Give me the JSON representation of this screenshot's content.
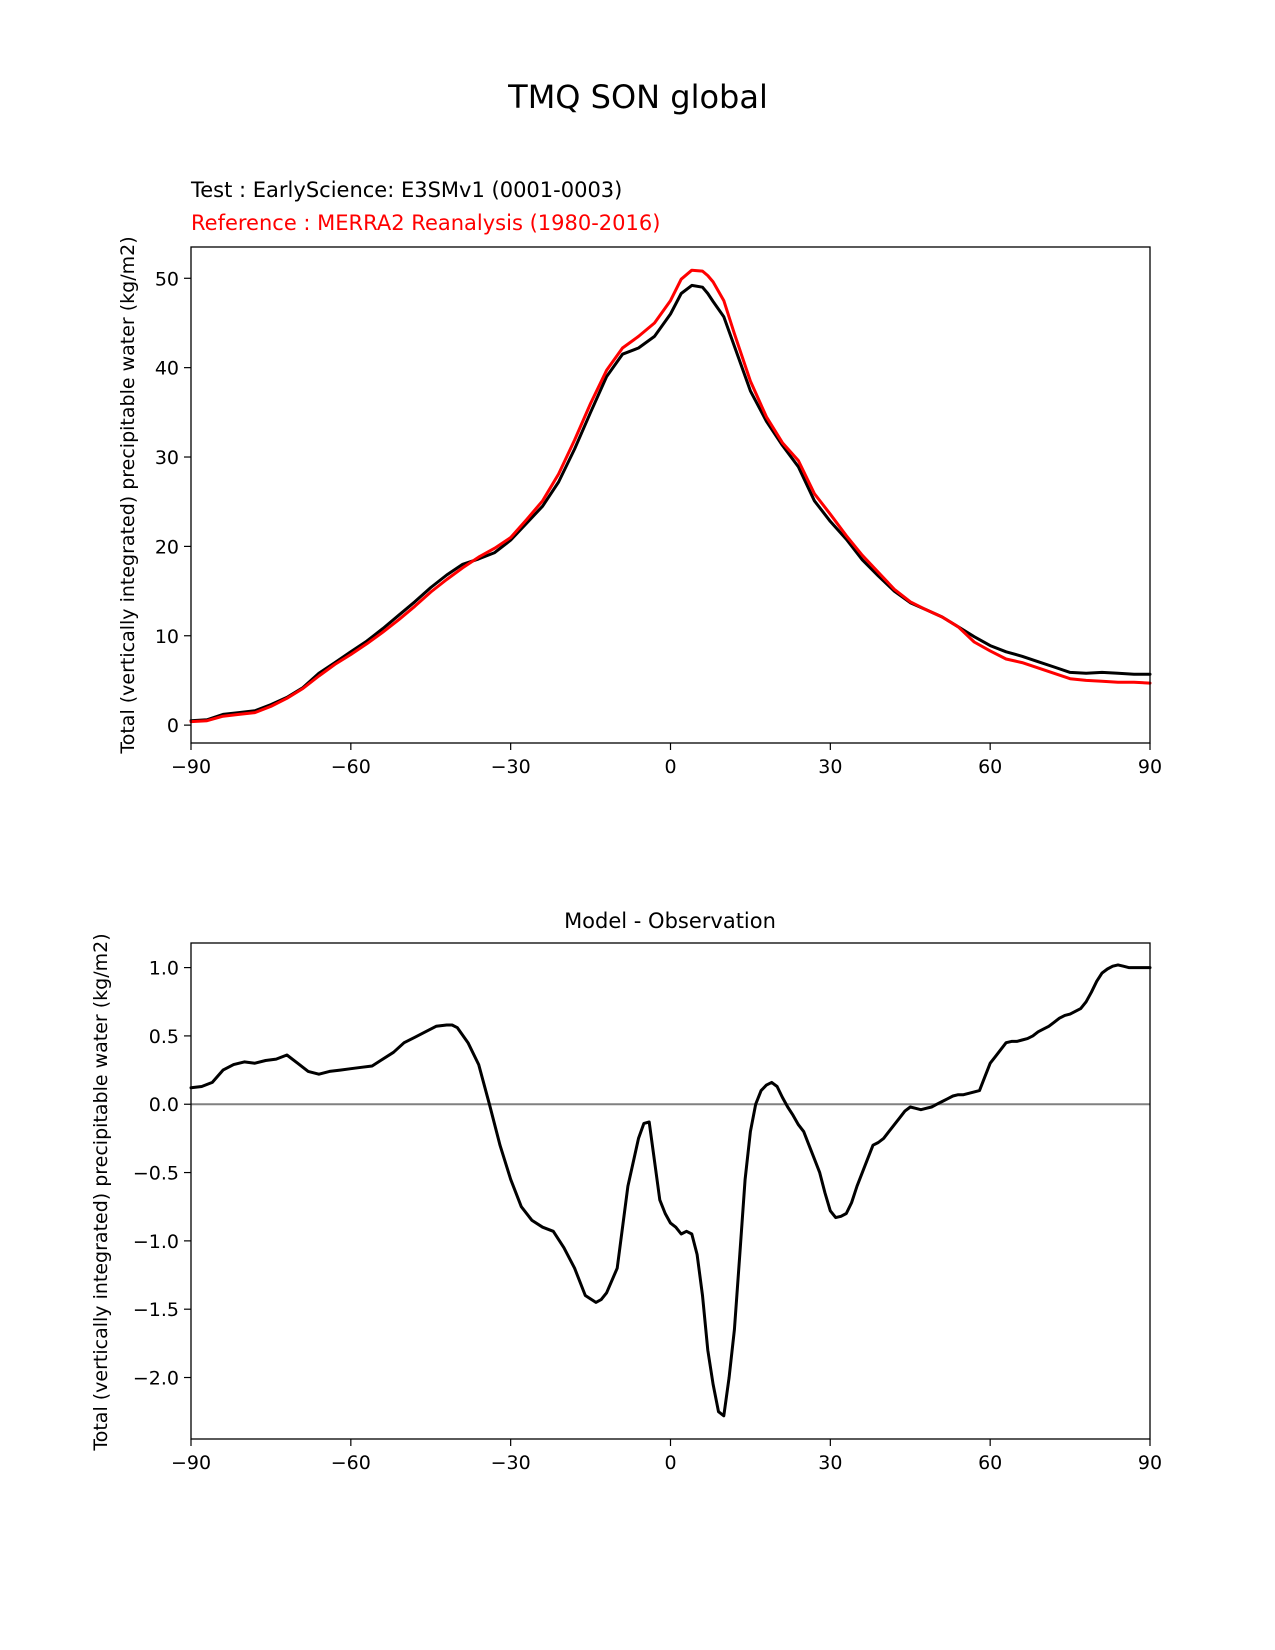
{
  "figure": {
    "title": "TMQ SON global"
  },
  "chart_data": [
    {
      "type": "line",
      "title": "",
      "legend_placement": "above-left",
      "legend": [
        {
          "label": "Test : EarlyScience: E3SMv1 (0001-0003)",
          "color": "#000000"
        },
        {
          "label": "Reference : MERRA2 Reanalysis (1980-2016)",
          "color": "#ff0000"
        }
      ],
      "xlabel": "",
      "ylabel": "Total (vertically integrated) precipitable water (kg/m2)",
      "xlim": [
        -90,
        90
      ],
      "ylim": [
        -2,
        53.5
      ],
      "xticks": [
        -90,
        -60,
        -30,
        0,
        30,
        60,
        90
      ],
      "xtick_labels": [
        "−90",
        "−60",
        "−30",
        "0",
        "30",
        "60",
        "90"
      ],
      "yticks": [
        0,
        10,
        20,
        30,
        40,
        50
      ],
      "ytick_labels": [
        "0",
        "10",
        "20",
        "30",
        "40",
        "50"
      ],
      "grid": false,
      "series": [
        {
          "name": "Test : EarlyScience: E3SMv1 (0001-0003)",
          "color": "#000000",
          "x": [
            -90,
            -87,
            -84,
            -81,
            -78,
            -75,
            -72,
            -69,
            -66,
            -63,
            -60,
            -57,
            -54,
            -51,
            -48,
            -45,
            -42,
            -39,
            -36,
            -33,
            -30,
            -27,
            -24,
            -21,
            -18,
            -15,
            -12,
            -9,
            -6,
            -3,
            0,
            2,
            4,
            6,
            7,
            8,
            10,
            12,
            15,
            18,
            21,
            24,
            27,
            30,
            33,
            36,
            39,
            42,
            45,
            48,
            51,
            54,
            57,
            60,
            63,
            66,
            69,
            72,
            75,
            78,
            81,
            84,
            87,
            90
          ],
          "y": [
            0.5,
            0.6,
            1.2,
            1.4,
            1.6,
            2.3,
            3.1,
            4.2,
            5.8,
            7.0,
            8.2,
            9.4,
            10.8,
            12.3,
            13.8,
            15.4,
            16.8,
            18.0,
            18.6,
            19.3,
            20.7,
            22.6,
            24.5,
            27.2,
            30.9,
            35.0,
            39.0,
            41.5,
            42.2,
            43.5,
            46.0,
            48.3,
            49.2,
            49.0,
            48.3,
            47.4,
            45.7,
            42.4,
            37.4,
            34.0,
            31.3,
            28.9,
            25.1,
            22.8,
            20.8,
            18.5,
            16.7,
            15.0,
            13.7,
            12.9,
            12.1,
            11.0,
            9.9,
            8.9,
            8.2,
            7.7,
            7.1,
            6.5,
            5.9,
            5.8,
            5.9,
            5.8,
            5.7,
            5.7
          ]
        },
        {
          "name": "Reference : MERRA2 Reanalysis (1980-2016)",
          "color": "#ff0000",
          "x": [
            -90,
            -87,
            -84,
            -81,
            -78,
            -75,
            -72,
            -69,
            -66,
            -63,
            -60,
            -57,
            -54,
            -51,
            -48,
            -45,
            -42,
            -39,
            -36,
            -33,
            -30,
            -27,
            -24,
            -21,
            -18,
            -15,
            -12,
            -9,
            -6,
            -3,
            0,
            2,
            4,
            6,
            7,
            8,
            10,
            12,
            15,
            18,
            21,
            24,
            27,
            30,
            33,
            36,
            39,
            42,
            45,
            48,
            51,
            54,
            57,
            60,
            63,
            66,
            69,
            72,
            75,
            78,
            81,
            84,
            87,
            90
          ],
          "y": [
            0.4,
            0.5,
            1.0,
            1.2,
            1.4,
            2.1,
            3.0,
            4.1,
            5.5,
            6.8,
            7.9,
            9.1,
            10.4,
            11.8,
            13.3,
            14.9,
            16.3,
            17.6,
            18.8,
            19.8,
            21.0,
            23.0,
            25.1,
            28.1,
            31.9,
            36.0,
            39.7,
            42.2,
            43.5,
            45.0,
            47.5,
            49.9,
            50.9,
            50.8,
            50.3,
            49.6,
            47.5,
            43.8,
            38.5,
            34.5,
            31.6,
            29.6,
            25.9,
            23.6,
            21.2,
            19.0,
            17.1,
            15.2,
            13.8,
            12.9,
            12.1,
            11.0,
            9.3,
            8.3,
            7.4,
            7.0,
            6.4,
            5.8,
            5.2,
            5.0,
            4.9,
            4.8,
            4.8,
            4.7
          ]
        }
      ]
    },
    {
      "type": "line",
      "title": "Model - Observation",
      "xlabel": "",
      "ylabel": "Total (vertically integrated) precipitable water (kg/m2)",
      "xlim": [
        -90,
        90
      ],
      "ylim": [
        -2.45,
        1.18
      ],
      "xticks": [
        -90,
        -60,
        -30,
        0,
        30,
        60,
        90
      ],
      "xtick_labels": [
        "−90",
        "−60",
        "−30",
        "0",
        "30",
        "60",
        "90"
      ],
      "yticks": [
        -2.0,
        -1.5,
        -1.0,
        -0.5,
        0.0,
        0.5,
        1.0
      ],
      "ytick_labels": [
        "−2.0",
        "−1.5",
        "−1.0",
        "−0.5",
        "0.0",
        "0.5",
        "1.0"
      ],
      "grid": false,
      "zero_line": {
        "y": 0,
        "color": "#808080"
      },
      "series": [
        {
          "color": "#000000",
          "x": [
            -90,
            -88,
            -86,
            -84,
            -82,
            -80,
            -78,
            -76,
            -74,
            -72,
            -70,
            -68,
            -66,
            -64,
            -62,
            -60,
            -58,
            -56,
            -54,
            -52,
            -50,
            -48,
            -46,
            -44,
            -42,
            -41,
            -40,
            -38,
            -36,
            -34,
            -32,
            -30,
            -28,
            -26,
            -24,
            -22,
            -20,
            -18,
            -16,
            -14,
            -13,
            -12,
            -10,
            -8,
            -6,
            -5,
            -4,
            -2,
            -1,
            0,
            1,
            2,
            3,
            4,
            5,
            6,
            7,
            8,
            9,
            10,
            11,
            12,
            13,
            14,
            15,
            16,
            17,
            18,
            19,
            20,
            21,
            22,
            23,
            24,
            25,
            26,
            27,
            28,
            29,
            30,
            31,
            32,
            33,
            34,
            35,
            36,
            37,
            38,
            39,
            40,
            41,
            42,
            43,
            44,
            45,
            46,
            47,
            48,
            49,
            50,
            51,
            52,
            53,
            54,
            55,
            56,
            57,
            58,
            59,
            60,
            61,
            62,
            63,
            64,
            65,
            66,
            67,
            68,
            69,
            70,
            71,
            72,
            73,
            74,
            75,
            76,
            77,
            78,
            79,
            80,
            81,
            82,
            83,
            84,
            85,
            86,
            87,
            88,
            89,
            90
          ],
          "y": [
            0.12,
            0.13,
            0.16,
            0.25,
            0.29,
            0.31,
            0.3,
            0.32,
            0.33,
            0.36,
            0.3,
            0.24,
            0.22,
            0.24,
            0.25,
            0.26,
            0.27,
            0.28,
            0.33,
            0.38,
            0.45,
            0.49,
            0.53,
            0.57,
            0.58,
            0.58,
            0.56,
            0.45,
            0.29,
            0.0,
            -0.3,
            -0.55,
            -0.75,
            -0.85,
            -0.9,
            -0.93,
            -1.05,
            -1.2,
            -1.4,
            -1.45,
            -1.43,
            -1.38,
            -1.2,
            -0.6,
            -0.25,
            -0.14,
            -0.13,
            -0.7,
            -0.8,
            -0.87,
            -0.9,
            -0.95,
            -0.93,
            -0.95,
            -1.1,
            -1.4,
            -1.8,
            -2.05,
            -2.25,
            -2.28,
            -2.0,
            -1.65,
            -1.1,
            -0.55,
            -0.2,
            0.0,
            0.1,
            0.14,
            0.16,
            0.13,
            0.05,
            -0.02,
            -0.08,
            -0.15,
            -0.2,
            -0.3,
            -0.4,
            -0.5,
            -0.65,
            -0.78,
            -0.83,
            -0.82,
            -0.8,
            -0.72,
            -0.6,
            -0.5,
            -0.4,
            -0.3,
            -0.28,
            -0.25,
            -0.2,
            -0.15,
            -0.1,
            -0.05,
            -0.02,
            -0.03,
            -0.04,
            -0.03,
            -0.02,
            0.0,
            0.02,
            0.04,
            0.06,
            0.07,
            0.07,
            0.08,
            0.09,
            0.1,
            0.2,
            0.3,
            0.35,
            0.4,
            0.45,
            0.46,
            0.46,
            0.47,
            0.48,
            0.5,
            0.53,
            0.55,
            0.57,
            0.6,
            0.63,
            0.65,
            0.66,
            0.68,
            0.7,
            0.75,
            0.82,
            0.9,
            0.96,
            0.99,
            1.01,
            1.02,
            1.01,
            1.0,
            1.0,
            1.0,
            1.0,
            1.0
          ]
        }
      ]
    }
  ]
}
